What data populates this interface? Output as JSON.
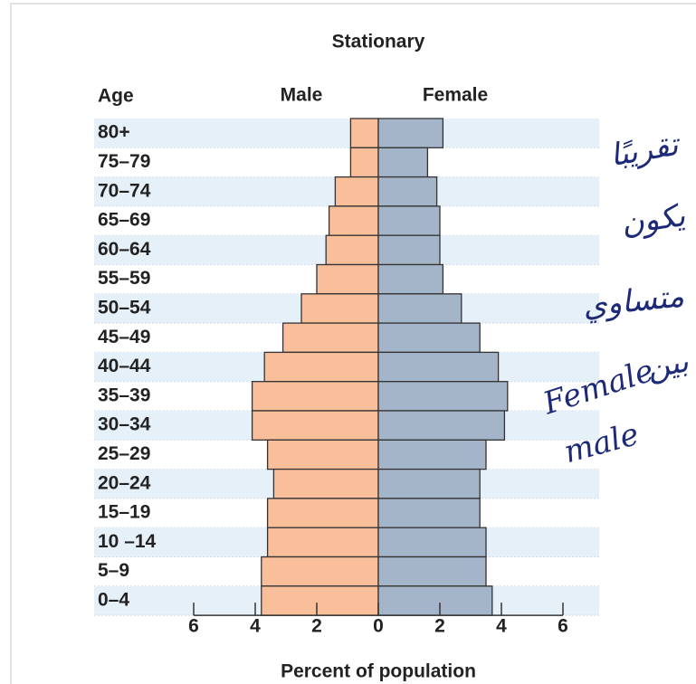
{
  "chart_data": {
    "type": "population-pyramid",
    "title": "Stationary",
    "y_label": "Age",
    "xlabel": "Percent of population",
    "categories": [
      "80+",
      "75–79",
      "70–74",
      "65–69",
      "60–64",
      "55–59",
      "50–54",
      "45–49",
      "40–44",
      "35–39",
      "30–34",
      "25–29",
      "20–24",
      "15–19",
      "10 –14",
      "5–9",
      "0–4"
    ],
    "series": [
      {
        "name": "Male",
        "color": "#f9be9a",
        "values": [
          0.9,
          0.9,
          1.4,
          1.6,
          1.7,
          2.0,
          2.5,
          3.1,
          3.7,
          4.1,
          4.1,
          3.6,
          3.4,
          3.6,
          3.6,
          3.8,
          3.8
        ]
      },
      {
        "name": "Female",
        "color": "#a5b5c9",
        "values": [
          2.1,
          1.6,
          1.9,
          2.0,
          2.0,
          2.1,
          2.7,
          3.3,
          3.9,
          4.2,
          4.1,
          3.5,
          3.3,
          3.3,
          3.5,
          3.5,
          3.7
        ]
      }
    ],
    "xlim": [
      -6,
      6
    ],
    "xticks": [
      {
        "value": -6,
        "label": "6"
      },
      {
        "value": -4,
        "label": "4"
      },
      {
        "value": -2,
        "label": "2"
      },
      0,
      2,
      4,
      6
    ],
    "annotations": [
      "تقريبًا",
      "يكون",
      "متساوي",
      "بين",
      "Female",
      "male"
    ]
  }
}
